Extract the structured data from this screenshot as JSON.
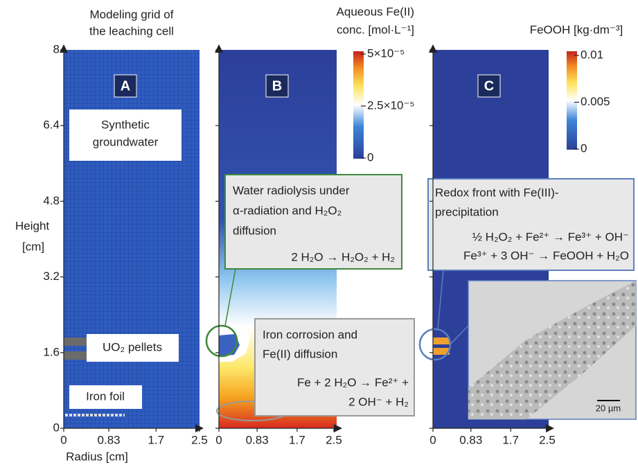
{
  "panel_a": {
    "title": [
      "Modeling grid of",
      "the leaching cell"
    ],
    "letter": "A",
    "y_label": [
      "Height",
      "[cm]"
    ],
    "x_label": "Radius [cm]",
    "ylim": [
      0,
      8
    ],
    "yticks": [
      0,
      1.6,
      3.2,
      4.8,
      6.4,
      8
    ],
    "xlim": [
      0,
      2.5
    ],
    "xticks": [
      0,
      0.83,
      1.7,
      2.5
    ],
    "labels": {
      "groundwater": [
        "Synthetic",
        "groundwater"
      ],
      "pellets": "UO₂ pellets",
      "foil": "Iron foil"
    }
  },
  "panel_b": {
    "title": [
      "Aqueous Fe(II)",
      "conc. [mol·L⁻¹]"
    ],
    "letter": "B",
    "xlim": [
      0,
      2.5
    ],
    "xticks": [
      0,
      0.83,
      1.7,
      2.5
    ],
    "clim": [
      0,
      5e-05
    ],
    "cticks": [
      {
        "value": 5e-05,
        "label": "5×10⁻⁵"
      },
      {
        "value": 2.5e-05,
        "label": "2.5×10⁻⁵"
      },
      0
    ],
    "box_radiolysis": [
      "Water radiolysis under",
      "α-radiation and H₂O₂",
      "diffusion",
      "2 H₂O → H₂O₂ + H₂"
    ],
    "box_corrosion": [
      "Iron corrosion and",
      "Fe(II) diffusion",
      "Fe + 2 H₂O → Fe²⁺ +",
      "2 OH⁻ + H₂"
    ]
  },
  "panel_c": {
    "title": "FeOOH [kg·dm⁻³]",
    "letter": "C",
    "xlim": [
      0,
      2.5
    ],
    "xticks": [
      0,
      0.83,
      1.7,
      2.5
    ],
    "clim": [
      0,
      0.01
    ],
    "cticks": [
      0.01,
      0.005,
      0
    ],
    "box_redox": [
      "Redox front with Fe(III)-",
      "precipitation",
      "½ H₂O₂ + Fe²⁺ → Fe³⁺ + OH⁻",
      "Fe³⁺ + 3 OH⁻ → FeOOH + H₂O"
    ],
    "scale_bar": "20 µm"
  }
}
